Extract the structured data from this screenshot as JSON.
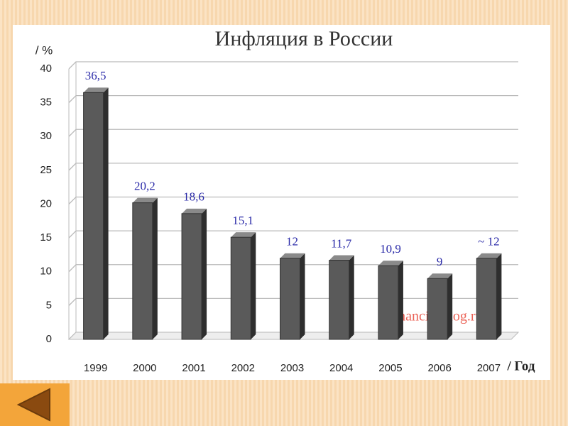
{
  "chart_data": {
    "type": "bar",
    "title": "Инфляция в России",
    "y_label": "/ %",
    "x_label": "/ Год",
    "watermark": "FinancialBlog.ru",
    "categories": [
      "1999",
      "2000",
      "2001",
      "2002",
      "2003",
      "2004",
      "2005",
      "2006",
      "2007"
    ],
    "values": [
      36.5,
      20.2,
      18.6,
      15.1,
      12,
      11.7,
      10.9,
      9,
      12
    ],
    "value_labels": [
      "36,5",
      "20,2",
      "18,6",
      "15,1",
      "12",
      "11,7",
      "10,9",
      "9",
      "~ 12"
    ],
    "color": "#5a5a5a",
    "ylim": [
      0,
      40
    ],
    "yticks": [
      0,
      5,
      10,
      15,
      20,
      25,
      30,
      35,
      40
    ],
    "grid": true
  }
}
